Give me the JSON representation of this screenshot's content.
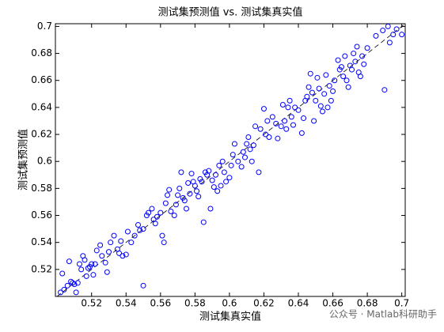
{
  "chart_data": {
    "type": "scatter",
    "title": "测试集预测值 vs. 测试集真实值",
    "x_label": "测试集真实值",
    "y_label": "测试集预测值",
    "color": "#0000ff",
    "reference_line": true,
    "watermark": "公众号 · Matlab科研助手",
    "xlim": [
      0.499,
      0.702
    ],
    "ylim": [
      0.5,
      0.702
    ],
    "xticks": [
      0.52,
      0.54,
      0.56,
      0.58,
      0.6,
      0.62,
      0.64,
      0.66,
      0.68,
      0.7
    ],
    "yticks": [
      0.52,
      0.54,
      0.56,
      0.58,
      0.6,
      0.62,
      0.64,
      0.66,
      0.68,
      0.7
    ],
    "x": [
      0.502,
      0.503,
      0.504,
      0.506,
      0.507,
      0.508,
      0.509,
      0.51,
      0.511,
      0.512,
      0.513,
      0.514,
      0.515,
      0.516,
      0.517,
      0.518,
      0.519,
      0.52,
      0.521,
      0.522,
      0.523,
      0.525,
      0.526,
      0.528,
      0.529,
      0.53,
      0.531,
      0.533,
      0.535,
      0.536,
      0.537,
      0.538,
      0.54,
      0.541,
      0.543,
      0.545,
      0.547,
      0.548,
      0.55,
      0.55,
      0.552,
      0.553,
      0.555,
      0.556,
      0.557,
      0.558,
      0.56,
      0.561,
      0.562,
      0.563,
      0.564,
      0.565,
      0.566,
      0.568,
      0.569,
      0.57,
      0.571,
      0.572,
      0.573,
      0.574,
      0.575,
      0.576,
      0.577,
      0.578,
      0.579,
      0.58,
      0.581,
      0.582,
      0.583,
      0.584,
      0.585,
      0.586,
      0.587,
      0.588,
      0.589,
      0.59,
      0.591,
      0.592,
      0.593,
      0.594,
      0.595,
      0.596,
      0.597,
      0.598,
      0.6,
      0.601,
      0.602,
      0.603,
      0.605,
      0.607,
      0.608,
      0.609,
      0.61,
      0.611,
      0.612,
      0.613,
      0.614,
      0.615,
      0.617,
      0.618,
      0.62,
      0.621,
      0.622,
      0.623,
      0.625,
      0.627,
      0.628,
      0.63,
      0.631,
      0.632,
      0.633,
      0.634,
      0.635,
      0.636,
      0.637,
      0.638,
      0.64,
      0.642,
      0.643,
      0.644,
      0.645,
      0.646,
      0.647,
      0.648,
      0.649,
      0.65,
      0.651,
      0.652,
      0.653,
      0.654,
      0.655,
      0.656,
      0.657,
      0.658,
      0.659,
      0.66,
      0.661,
      0.663,
      0.664,
      0.665,
      0.666,
      0.667,
      0.668,
      0.669,
      0.67,
      0.671,
      0.672,
      0.673,
      0.674,
      0.675,
      0.676,
      0.677,
      0.678,
      0.68,
      0.685,
      0.689,
      0.69,
      0.692,
      0.693,
      0.695,
      0.697,
      0.7
    ],
    "values": [
      0.503,
      0.517,
      0.505,
      0.508,
      0.526,
      0.511,
      0.51,
      0.509,
      0.503,
      0.51,
      0.524,
      0.52,
      0.53,
      0.527,
      0.515,
      0.521,
      0.522,
      0.524,
      0.516,
      0.524,
      0.534,
      0.538,
      0.53,
      0.525,
      0.518,
      0.533,
      0.54,
      0.545,
      0.535,
      0.532,
      0.541,
      0.53,
      0.531,
      0.548,
      0.54,
      0.545,
      0.553,
      0.549,
      0.55,
      0.508,
      0.56,
      0.562,
      0.565,
      0.557,
      0.554,
      0.559,
      0.562,
      0.545,
      0.54,
      0.569,
      0.575,
      0.579,
      0.563,
      0.56,
      0.568,
      0.575,
      0.58,
      0.592,
      0.573,
      0.571,
      0.565,
      0.584,
      0.576,
      0.591,
      0.585,
      0.582,
      0.578,
      0.574,
      0.587,
      0.585,
      0.555,
      0.592,
      0.59,
      0.593,
      0.565,
      0.586,
      0.581,
      0.59,
      0.578,
      0.597,
      0.582,
      0.6,
      0.592,
      0.585,
      0.588,
      0.597,
      0.605,
      0.613,
      0.6,
      0.596,
      0.607,
      0.603,
      0.613,
      0.618,
      0.609,
      0.6,
      0.612,
      0.626,
      0.592,
      0.624,
      0.639,
      0.62,
      0.63,
      0.618,
      0.633,
      0.628,
      0.617,
      0.626,
      0.642,
      0.63,
      0.624,
      0.64,
      0.645,
      0.633,
      0.627,
      0.64,
      0.638,
      0.621,
      0.632,
      0.645,
      0.648,
      0.655,
      0.665,
      0.651,
      0.63,
      0.645,
      0.662,
      0.654,
      0.641,
      0.637,
      0.65,
      0.664,
      0.64,
      0.656,
      0.645,
      0.652,
      0.66,
      0.675,
      0.668,
      0.67,
      0.663,
      0.678,
      0.66,
      0.655,
      0.671,
      0.668,
      0.68,
      0.674,
      0.685,
      0.666,
      0.663,
      0.678,
      0.672,
      0.684,
      0.693,
      0.697,
      0.653,
      0.7,
      0.688,
      0.694,
      0.698,
      0.694
    ]
  }
}
